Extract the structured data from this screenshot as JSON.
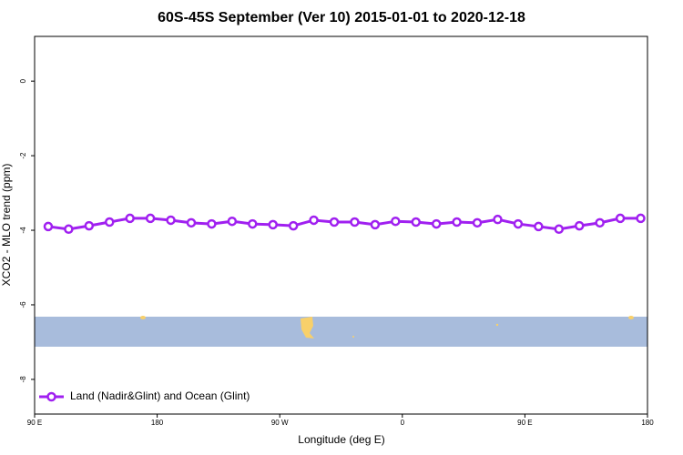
{
  "chart_data": {
    "type": "line",
    "title": "60S-45S September (Ver 10)   2015-01-01 to 2020-12-18",
    "x_label": "Longitude (deg E)",
    "y_label": "XCO2 - MLO trend (ppm)",
    "x": [
      100,
      115,
      130,
      145,
      160,
      175,
      190,
      205,
      220,
      235,
      250,
      265,
      280,
      295,
      310,
      325,
      340,
      355,
      370,
      385,
      400,
      415,
      430,
      445,
      460,
      475,
      490,
      505,
      520,
      535
    ],
    "series": [
      {
        "name": "Land (Nadir&Glint) and Ocean (Glint)",
        "color": "#a020f0",
        "values": [
          -3.9,
          -3.97,
          -3.88,
          -3.78,
          -3.68,
          -3.68,
          -3.73,
          -3.8,
          -3.83,
          -3.76,
          -3.83,
          -3.85,
          -3.88,
          -3.73,
          -3.78,
          -3.78,
          -3.85,
          -3.76,
          -3.78,
          -3.83,
          -3.78,
          -3.8,
          -3.71,
          -3.83,
          -3.9,
          -3.97,
          -3.88,
          -3.8,
          -3.68,
          -3.68
        ]
      }
    ],
    "xlim": [
      90,
      540
    ],
    "xticks": [
      {
        "value": 90,
        "label": "90 E"
      },
      180,
      {
        "value": 270,
        "label": "90 W"
      },
      {
        "value": 360,
        "label": "0"
      },
      {
        "value": 450,
        "label": "90 E"
      },
      {
        "value": 540,
        "label": "180"
      }
    ],
    "ylim": [
      -8.93,
      1.2
    ],
    "yticks": [
      0,
      -2,
      -4,
      -6,
      -8
    ],
    "legend": "bottom-left"
  }
}
